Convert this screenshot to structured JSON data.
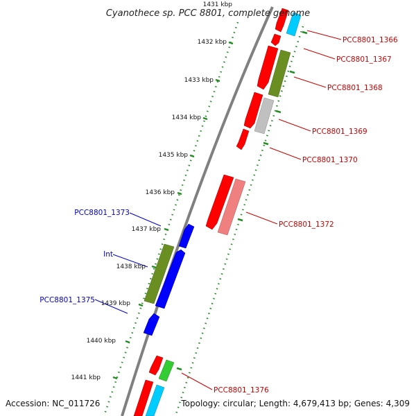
{
  "title": "Cyanothece sp. PCC 8801, complete genome",
  "footer": {
    "accession": "Accession: NC_011726",
    "stats": "Topology: circular; Length: 4,679,413 bp; Genes: 4,309"
  },
  "ticks": [
    "1431 kbp",
    "1432 kbp",
    "1433 kbp",
    "1434 kbp",
    "1435 kbp",
    "1436 kbp",
    "1437 kbp",
    "1438 kbp",
    "1439 kbp",
    "1440 kbp",
    "1441 kbp"
  ],
  "labels": [
    {
      "text": "PCC8801_1366",
      "strand": "forward"
    },
    {
      "text": "PCC8801_1367",
      "strand": "forward"
    },
    {
      "text": "PCC8801_1368",
      "strand": "forward"
    },
    {
      "text": "PCC8801_1369",
      "strand": "forward"
    },
    {
      "text": "PCC8801_1370",
      "strand": "forward"
    },
    {
      "text": "PCC8801_1372",
      "strand": "forward"
    },
    {
      "text": "PCC8801_1373",
      "strand": "reverse"
    },
    {
      "text": "Int",
      "strand": "reverse"
    },
    {
      "text": "PCC8801_1375",
      "strand": "reverse"
    },
    {
      "text": "PCC8801_1376",
      "strand": "forward"
    }
  ],
  "colors": {
    "backbone": "#808080",
    "forward_label": "#cc0000",
    "reverse_label": "#0000cc",
    "tick_dots": "#228b22",
    "cds_red": "#ff0000",
    "olive": "#6b8e23",
    "gray": "#c0c0c0",
    "pink": "#f08080",
    "blue": "#0000ff",
    "cyan": "#00ccff",
    "green": "#33cc33"
  }
}
